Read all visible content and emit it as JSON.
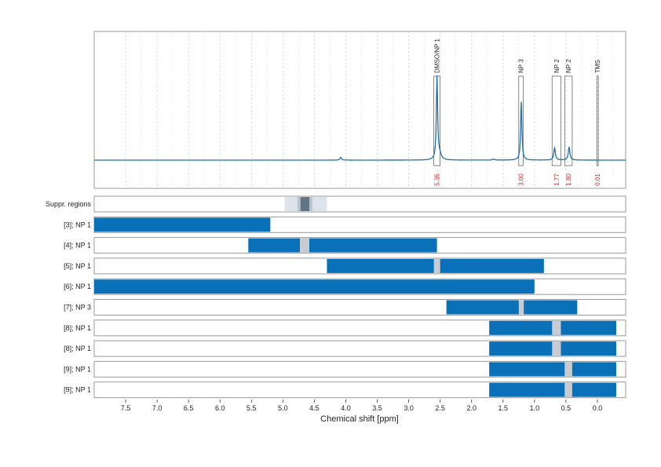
{
  "chart_data": {
    "type": "line",
    "xlabel": "Chemical shift [ppm]",
    "xlim": [
      8.0,
      -0.45
    ],
    "x_axis_reversed": true,
    "x_ticks": [
      "7.5",
      "7.0",
      "6.5",
      "6.0",
      "5.5",
      "5.0",
      "4.5",
      "4.0",
      "3.5",
      "3.0",
      "2.5",
      "2.0",
      "1.5",
      "1.0",
      "0.5",
      "0.0"
    ],
    "grid": true,
    "colors": {
      "spectrum": "#1f6fb0",
      "bar": "#0a70b8",
      "gap": "#c8ccd0",
      "integral_text": "#d62728",
      "frame": "#9a9a9a",
      "suppr_outer": "#dde3ea",
      "suppr_mid": "#b9c3ce",
      "suppr_core": "#5f7585"
    },
    "spectrum": {
      "baseline": 0.0,
      "ymax": 1.0,
      "peaks": [
        {
          "ppm": 2.55,
          "height": 0.88,
          "width": 0.012
        },
        {
          "ppm": 2.51,
          "height": 0.06,
          "width": 0.03
        },
        {
          "ppm": 1.21,
          "height": 0.62,
          "width": 0.012
        },
        {
          "ppm": 0.68,
          "height": 0.13,
          "width": 0.015
        },
        {
          "ppm": 0.45,
          "height": 0.14,
          "width": 0.015
        },
        {
          "ppm": 4.08,
          "height": 0.03,
          "width": 0.015
        },
        {
          "ppm": 1.65,
          "height": 0.01,
          "width": 0.02
        }
      ]
    },
    "annotations": [
      {
        "label": "DMSO/NP 1",
        "integral": "5.35",
        "from": 2.5,
        "to": 2.6
      },
      {
        "label": "NP 3",
        "integral": "3.00",
        "from": 1.18,
        "to": 1.25
      },
      {
        "label": "NP 2",
        "integral": "1.77",
        "from": 0.58,
        "to": 0.72
      },
      {
        "label": "NP 2",
        "integral": "1.80",
        "from": 0.4,
        "to": 0.52
      },
      {
        "label": "TMS",
        "integral": "0.01",
        "from": 0.0,
        "to": 0.01
      }
    ],
    "suppression": {
      "label": "Suppr. regions",
      "outer": [
        4.97,
        4.3
      ],
      "mid": [
        4.77,
        4.53
      ],
      "core": [
        4.72,
        4.58
      ]
    },
    "rows": [
      {
        "label": "[3]; NP 1",
        "from": 8.0,
        "to": 5.2,
        "gaps": []
      },
      {
        "label": "[4]; NP 1",
        "from": 5.55,
        "to": 2.55,
        "gaps": [
          [
            4.73,
            4.58
          ]
        ]
      },
      {
        "label": "[5]; NP 1",
        "from": 4.3,
        "to": 0.85,
        "gaps": [
          [
            2.6,
            2.5
          ]
        ]
      },
      {
        "label": "[6]; NP 1",
        "from": 8.0,
        "to": 1.0,
        "gaps": []
      },
      {
        "label": "[7]; NP 3",
        "from": 2.4,
        "to": 0.32,
        "gaps": [
          [
            1.25,
            1.17
          ]
        ]
      },
      {
        "label": "[8]; NP 1",
        "from": 1.72,
        "to": -0.3,
        "gaps": [
          [
            0.72,
            0.58
          ]
        ]
      },
      {
        "label": "[8]; NP 1",
        "from": 1.72,
        "to": -0.3,
        "gaps": [
          [
            0.72,
            0.58
          ]
        ]
      },
      {
        "label": "[9]; NP 1",
        "from": 1.72,
        "to": -0.3,
        "gaps": [
          [
            0.52,
            0.4
          ]
        ]
      },
      {
        "label": "[9]; NP 1",
        "from": 1.72,
        "to": -0.3,
        "gaps": [
          [
            0.52,
            0.4
          ]
        ]
      }
    ]
  }
}
